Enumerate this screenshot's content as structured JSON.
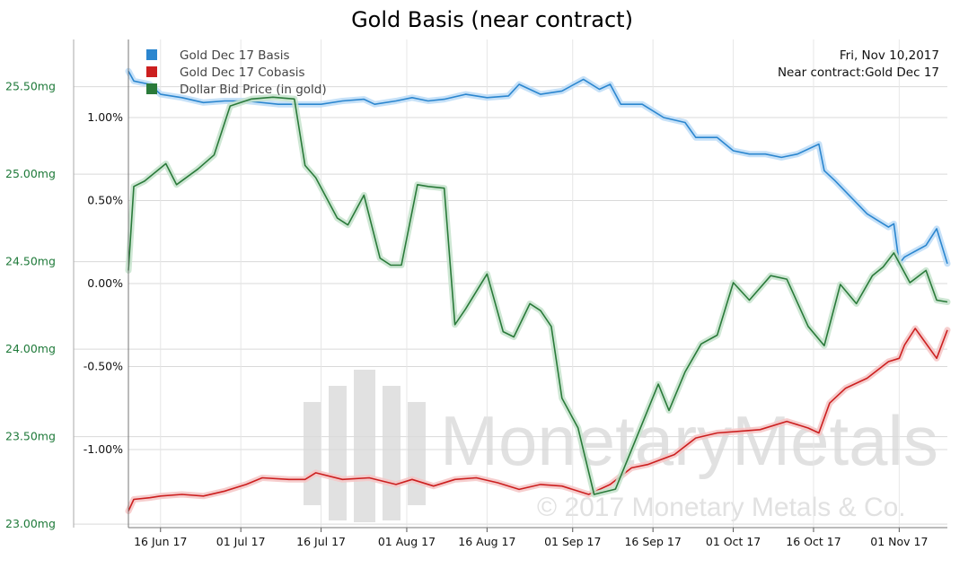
{
  "chart_data": {
    "type": "line",
    "title": "Gold Basis (near contract)",
    "annotations": [
      "Fri, Nov 10,2017",
      "Near contract:Gold Dec 17"
    ],
    "watermark": {
      "brand": "MonetaryMetals",
      "copyright": "© 2017 Monetary Metals & Co."
    },
    "x_tick_labels": [
      "16 Jun 17",
      "01 Jul 17",
      "16 Jul 17",
      "01 Aug 17",
      "16 Aug 17",
      "01 Sep 17",
      "16 Sep 17",
      "01 Oct 17",
      "16 Oct 17",
      "01 Nov 17"
    ],
    "x_range": [
      "2017-06-10",
      "2017-11-10"
    ],
    "y_left": {
      "range": [
        22.98,
        25.77
      ],
      "ticks": [
        23.0,
        23.5,
        24.0,
        24.5,
        25.0,
        25.5
      ],
      "tick_labels": [
        "23.00mg",
        "23.50mg",
        "24.00mg",
        "24.50mg",
        "25.00mg",
        "25.50mg"
      ],
      "color": "#1f7a3a"
    },
    "y_right": {
      "range": [
        -1.47,
        1.47
      ],
      "ticks": [
        -1.0,
        -0.5,
        0.0,
        0.5,
        1.0
      ],
      "tick_labels": [
        "-1.00%",
        "-0.50%",
        "0.00%",
        "0.50%",
        "1.00%"
      ]
    },
    "grid": true,
    "legend_position": "top-left",
    "series": [
      {
        "name": "Gold Dec 17 Basis",
        "axis": "right",
        "color": "#2b86cf",
        "glow": "#bcdcf7",
        "x": [
          "2017-06-10",
          "2017-06-11",
          "2017-06-14",
          "2017-06-16",
          "2017-06-20",
          "2017-06-24",
          "2017-06-28",
          "2017-07-02",
          "2017-07-08",
          "2017-07-12",
          "2017-07-16",
          "2017-07-20",
          "2017-07-24",
          "2017-07-26",
          "2017-07-30",
          "2017-08-02",
          "2017-08-05",
          "2017-08-08",
          "2017-08-12",
          "2017-08-16",
          "2017-08-20",
          "2017-08-22",
          "2017-08-26",
          "2017-08-30",
          "2017-09-03",
          "2017-09-06",
          "2017-09-08",
          "2017-09-10",
          "2017-09-14",
          "2017-09-18",
          "2017-09-22",
          "2017-09-24",
          "2017-09-28",
          "2017-10-01",
          "2017-10-04",
          "2017-10-07",
          "2017-10-10",
          "2017-10-13",
          "2017-10-17",
          "2017-10-18",
          "2017-10-20",
          "2017-10-23",
          "2017-10-26",
          "2017-10-30",
          "2017-10-31",
          "2017-11-01",
          "2017-11-02",
          "2017-11-06",
          "2017-11-08",
          "2017-11-10"
        ],
        "y": [
          1.28,
          1.22,
          1.2,
          1.14,
          1.12,
          1.09,
          1.1,
          1.1,
          1.08,
          1.08,
          1.08,
          1.1,
          1.11,
          1.08,
          1.1,
          1.12,
          1.1,
          1.11,
          1.14,
          1.12,
          1.13,
          1.2,
          1.14,
          1.16,
          1.23,
          1.17,
          1.2,
          1.08,
          1.08,
          1.0,
          0.97,
          0.88,
          0.88,
          0.8,
          0.78,
          0.78,
          0.76,
          0.78,
          0.84,
          0.68,
          0.62,
          0.52,
          0.42,
          0.34,
          0.36,
          0.12,
          0.16,
          0.23,
          0.33,
          0.12
        ]
      },
      {
        "name": "Gold Dec 17 Cobasis",
        "axis": "right",
        "color": "#cc1f1f",
        "glow": "#f5c6c6",
        "x": [
          "2017-06-10",
          "2017-06-11",
          "2017-06-14",
          "2017-06-16",
          "2017-06-20",
          "2017-06-24",
          "2017-06-28",
          "2017-07-02",
          "2017-07-05",
          "2017-07-10",
          "2017-07-13",
          "2017-07-15",
          "2017-07-20",
          "2017-07-25",
          "2017-07-30",
          "2017-08-02",
          "2017-08-06",
          "2017-08-10",
          "2017-08-14",
          "2017-08-18",
          "2017-08-22",
          "2017-08-26",
          "2017-08-30",
          "2017-09-04",
          "2017-09-08",
          "2017-09-12",
          "2017-09-15",
          "2017-09-20",
          "2017-09-24",
          "2017-09-28",
          "2017-10-02",
          "2017-10-06",
          "2017-10-11",
          "2017-10-15",
          "2017-10-17",
          "2017-10-19",
          "2017-10-22",
          "2017-10-26",
          "2017-10-30",
          "2017-11-01",
          "2017-11-02",
          "2017-11-04",
          "2017-11-08",
          "2017-11-10"
        ],
        "y": [
          -1.37,
          -1.3,
          -1.29,
          -1.28,
          -1.27,
          -1.28,
          -1.25,
          -1.21,
          -1.17,
          -1.18,
          -1.18,
          -1.14,
          -1.18,
          -1.17,
          -1.21,
          -1.18,
          -1.22,
          -1.18,
          -1.17,
          -1.2,
          -1.24,
          -1.21,
          -1.22,
          -1.27,
          -1.21,
          -1.11,
          -1.09,
          -1.03,
          -0.93,
          -0.9,
          -0.89,
          -0.88,
          -0.83,
          -0.87,
          -0.9,
          -0.72,
          -0.63,
          -0.57,
          -0.47,
          -0.45,
          -0.37,
          -0.27,
          -0.45,
          -0.28
        ]
      },
      {
        "name": "Dollar Bid Price (in gold)",
        "axis": "left",
        "color": "#2a7a3a",
        "glow": "#c6e3cd",
        "x": [
          "2017-06-10",
          "2017-06-11",
          "2017-06-13",
          "2017-06-17",
          "2017-06-19",
          "2017-06-23",
          "2017-06-26",
          "2017-06-29",
          "2017-07-03",
          "2017-07-07",
          "2017-07-11",
          "2017-07-13",
          "2017-07-15",
          "2017-07-19",
          "2017-07-21",
          "2017-07-24",
          "2017-07-27",
          "2017-07-29",
          "2017-07-31",
          "2017-08-03",
          "2017-08-05",
          "2017-08-08",
          "2017-08-10",
          "2017-08-12",
          "2017-08-16",
          "2017-08-19",
          "2017-08-21",
          "2017-08-24",
          "2017-08-26",
          "2017-08-28",
          "2017-08-30",
          "2017-09-02",
          "2017-09-05",
          "2017-09-09",
          "2017-09-13",
          "2017-09-17",
          "2017-09-19",
          "2017-09-22",
          "2017-09-25",
          "2017-09-28",
          "2017-10-01",
          "2017-10-04",
          "2017-10-08",
          "2017-10-11",
          "2017-10-15",
          "2017-10-18",
          "2017-10-21",
          "2017-10-24",
          "2017-10-27",
          "2017-10-29",
          "2017-10-31",
          "2017-11-03",
          "2017-11-06",
          "2017-11-08",
          "2017-11-10"
        ],
        "y": [
          24.45,
          24.93,
          24.96,
          25.06,
          24.94,
          25.03,
          25.11,
          25.39,
          25.43,
          25.44,
          25.43,
          25.05,
          24.98,
          24.75,
          24.71,
          24.88,
          24.52,
          24.48,
          24.48,
          24.94,
          24.93,
          24.92,
          24.14,
          24.23,
          24.43,
          24.1,
          24.07,
          24.26,
          24.22,
          24.13,
          23.72,
          23.55,
          23.17,
          23.2,
          23.5,
          23.8,
          23.65,
          23.87,
          24.03,
          24.08,
          24.38,
          24.28,
          24.42,
          24.4,
          24.13,
          24.02,
          24.37,
          24.26,
          24.42,
          24.47,
          24.55,
          24.38,
          24.45,
          24.28,
          24.27
        ]
      }
    ]
  }
}
